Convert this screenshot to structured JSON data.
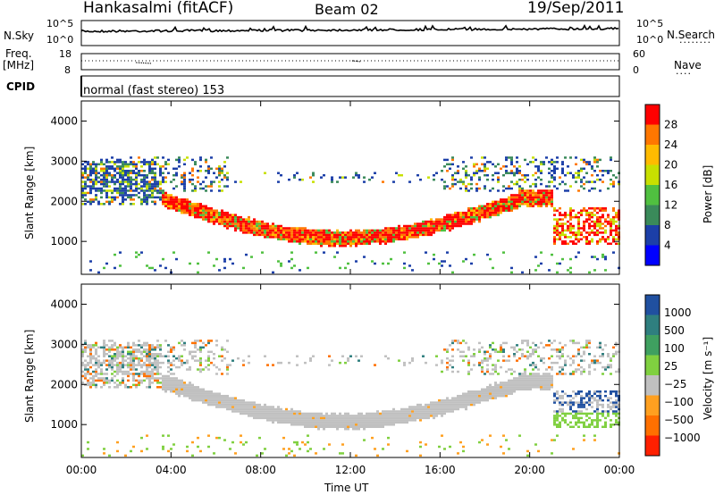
{
  "header": {
    "station": "Hankasalmi (fitACF)",
    "beam": "Beam 02",
    "date": "19/Sep/2011"
  },
  "top_panels": {
    "nsky_label": "N.Sky",
    "nsky_ticks": [
      "10^5",
      "10^0"
    ],
    "nsearch_label": "N.Search",
    "nsearch_ticks": [
      "10^5",
      "10^0"
    ],
    "freq_label_1": "Freq.",
    "freq_label_2": "[MHz]",
    "freq_ticks": [
      "18",
      "8"
    ],
    "nave_label": "Nave",
    "nave_ticks": [
      "60",
      "0"
    ],
    "cpid_label": "CPID",
    "cpid_text": "normal (fast stereo) 153"
  },
  "chart_data": [
    {
      "type": "heatmap",
      "name": "power",
      "xlabel": "Time UT",
      "ylabel": "Slant Range [km]",
      "x_ticks": [
        "00:00",
        "04:00",
        "08:00",
        "12:00",
        "16:00",
        "20:00",
        "00:00"
      ],
      "xlim_hours": [
        0,
        24
      ],
      "ylim_km": [
        180,
        4500
      ],
      "y_ticks": [
        1000,
        2000,
        3000,
        4000
      ],
      "colorbar_label": "Power [dB]",
      "colorbar_ticks": [
        "28",
        "24",
        "20",
        "16",
        "12",
        "8",
        "4"
      ],
      "colorbar_colors": [
        "#ff0000",
        "#ff7700",
        "#ffbb00",
        "#c8e000",
        "#50c040",
        "#3a8a5a",
        "#1c3fa8",
        "#0000ff"
      ],
      "features": [
        {
          "label": "main band",
          "start_hour": 3.5,
          "end_hour": 21,
          "min_range_km": 950,
          "max_range_km": 2100
        },
        {
          "label": "upper band",
          "start_hour": 0,
          "end_hour": 24,
          "range_km": [
            2000,
            3100
          ]
        },
        {
          "label": "late band",
          "start_hour": 21,
          "end_hour": 24,
          "range_km": [
            900,
            1800
          ]
        }
      ]
    },
    {
      "type": "heatmap",
      "name": "velocity",
      "xlabel": "Time UT",
      "ylabel": "Slant Range [km]",
      "x_ticks": [
        "00:00",
        "04:00",
        "08:00",
        "12:00",
        "16:00",
        "20:00",
        "00:00"
      ],
      "xlim_hours": [
        0,
        24
      ],
      "ylim_km": [
        180,
        4500
      ],
      "y_ticks": [
        1000,
        2000,
        3000,
        4000
      ],
      "colorbar_label": "Velocity  [m s⁻¹]",
      "colorbar_ticks": [
        "1000",
        "500",
        "100",
        "25",
        "−25",
        "−100",
        "−500",
        "−1000"
      ],
      "colorbar_colors": [
        "#2050a0",
        "#2f7f7f",
        "#3fa060",
        "#80d040",
        "#c0c0c0",
        "#ffa020",
        "#ff7000",
        "#ff2000"
      ],
      "features": [
        {
          "label": "ground scatter band",
          "start_hour": 3.5,
          "end_hour": 21,
          "color": "#c0c0c0"
        },
        {
          "label": "late green patch",
          "start_hour": 20.8,
          "end_hour": 23,
          "range_km": [
            900,
            1200
          ],
          "color": "#80d040"
        }
      ]
    }
  ],
  "colors": {
    "frame": "#000000",
    "ground_scatter": "#c0c0c0"
  }
}
